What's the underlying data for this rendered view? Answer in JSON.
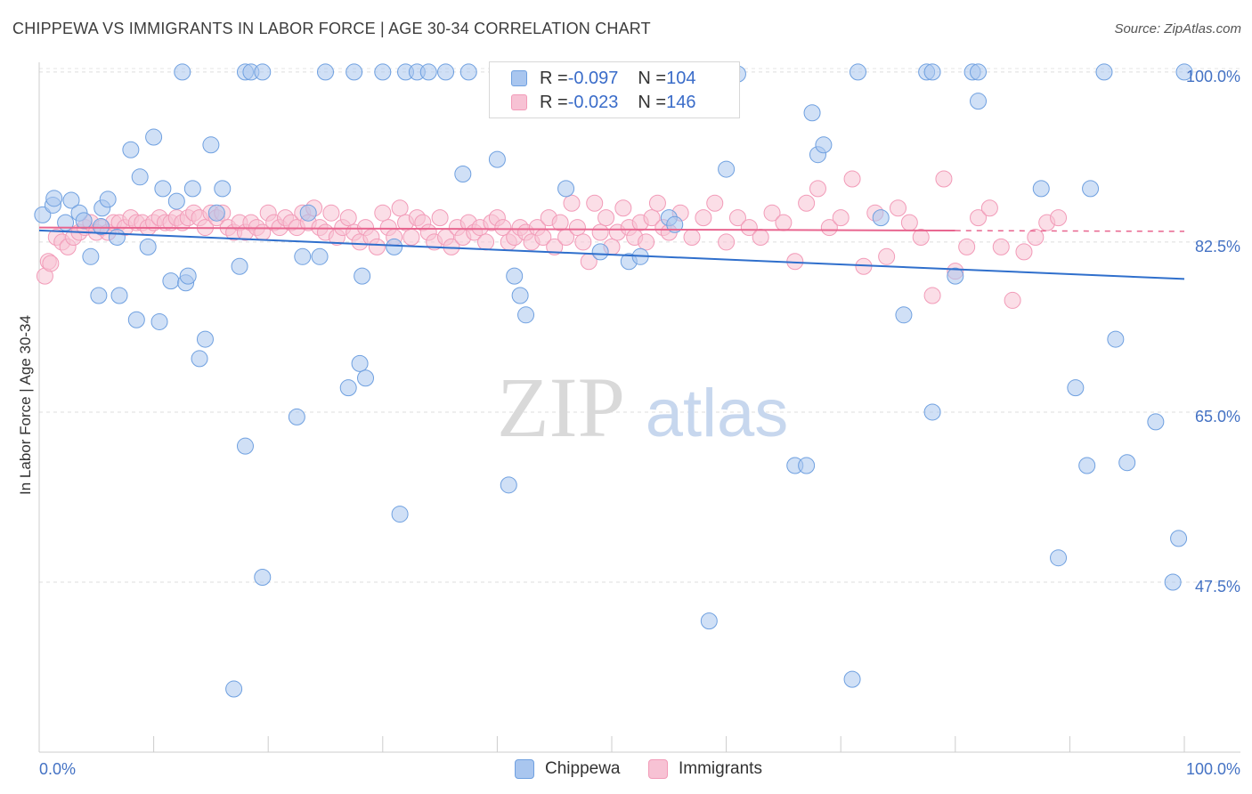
{
  "title": "CHIPPEWA VS IMMIGRANTS IN LABOR FORCE | AGE 30-34 CORRELATION CHART",
  "source": "Source: ZipAtlas.com",
  "watermark": {
    "zip": "ZIP",
    "atlas": "atlas"
  },
  "legend": {
    "rows": [
      {
        "r_label": "R = ",
        "r_value": "-0.097",
        "n_label": "N = ",
        "n_value": "104",
        "color": "#6fa0e0"
      },
      {
        "r_label": "R = ",
        "r_value": "-0.023",
        "n_label": "N = ",
        "n_value": "146",
        "color": "#f29bb8"
      }
    ]
  },
  "bottom_legend": {
    "chippewa": "Chippewa",
    "immigrants": "Immigrants"
  },
  "chart_data": {
    "type": "scatter",
    "ylabel": "In Labor Force | Age 30-34",
    "xlabel": "",
    "xlim": [
      0,
      100
    ],
    "ylim": [
      30,
      101
    ],
    "x_tick_labels": [
      "0.0%",
      "100.0%"
    ],
    "y_ticks": [
      {
        "value": 100,
        "label": "100.0%"
      },
      {
        "value": 82.5,
        "label": "82.5%"
      },
      {
        "value": 65,
        "label": "65.0%"
      },
      {
        "value": 47.5,
        "label": "47.5%"
      }
    ],
    "grid": true,
    "series": [
      {
        "name": "Chippewa",
        "color": "#6fa0e0",
        "fill": "#a9c6ef",
        "trend": {
          "x0": 0,
          "y0": 83.7,
          "x1": 100,
          "y1": 78.7,
          "dashed_from": null
        },
        "points": [
          [
            0.3,
            85.3
          ],
          [
            1.2,
            86.3
          ],
          [
            1.3,
            87.0
          ],
          [
            2.3,
            84.5
          ],
          [
            2.8,
            86.8
          ],
          [
            3.5,
            85.5
          ],
          [
            3.9,
            84.7
          ],
          [
            4.5,
            81.0
          ],
          [
            5.2,
            77.0
          ],
          [
            5.4,
            84.1
          ],
          [
            5.5,
            86.0
          ],
          [
            6.0,
            86.9
          ],
          [
            6.8,
            83.0
          ],
          [
            7.0,
            77.0
          ],
          [
            8.0,
            92.0
          ],
          [
            8.5,
            74.5
          ],
          [
            8.8,
            89.2
          ],
          [
            9.5,
            82.0
          ],
          [
            10.0,
            93.3
          ],
          [
            10.5,
            74.3
          ],
          [
            10.8,
            88.0
          ],
          [
            11.5,
            78.5
          ],
          [
            12.0,
            86.7
          ],
          [
            12.5,
            100
          ],
          [
            12.8,
            78.3
          ],
          [
            13.0,
            79.0
          ],
          [
            13.4,
            88.0
          ],
          [
            14.0,
            70.5
          ],
          [
            14.5,
            72.5
          ],
          [
            15.0,
            92.5
          ],
          [
            15.5,
            85.5
          ],
          [
            16.0,
            88.0
          ],
          [
            17.5,
            80.0
          ],
          [
            18.0,
            100
          ],
          [
            18.5,
            100
          ],
          [
            19.5,
            100
          ],
          [
            17.0,
            36.5
          ],
          [
            18.0,
            61.5
          ],
          [
            19.5,
            48.0
          ],
          [
            22.5,
            64.5
          ],
          [
            23.0,
            81.0
          ],
          [
            23.5,
            85.5
          ],
          [
            24.5,
            81.0
          ],
          [
            25.0,
            100
          ],
          [
            27.5,
            100
          ],
          [
            27.0,
            67.5
          ],
          [
            28.0,
            70.0
          ],
          [
            28.2,
            79.0
          ],
          [
            28.5,
            68.5
          ],
          [
            30.0,
            100
          ],
          [
            31.0,
            82.0
          ],
          [
            31.5,
            54.5
          ],
          [
            32.0,
            100
          ],
          [
            33.0,
            100
          ],
          [
            34.0,
            100
          ],
          [
            35.5,
            100
          ],
          [
            37.5,
            100
          ],
          [
            37.0,
            89.5
          ],
          [
            40.0,
            91.0
          ],
          [
            41.0,
            57.5
          ],
          [
            41.5,
            79.0
          ],
          [
            42.0,
            77.0
          ],
          [
            42.5,
            75.0
          ],
          [
            46.0,
            88.0
          ],
          [
            49.0,
            81.5
          ],
          [
            51.0,
            100
          ],
          [
            51.5,
            80.5
          ],
          [
            52.5,
            81.0
          ],
          [
            54.0,
            100
          ],
          [
            55.0,
            85.0
          ],
          [
            55.5,
            84.3
          ],
          [
            58.0,
            100
          ],
          [
            58.5,
            43.5
          ],
          [
            60.0,
            90.0
          ],
          [
            61.0,
            99.8
          ],
          [
            66.0,
            59.5
          ],
          [
            67.0,
            59.5
          ],
          [
            67.5,
            95.8
          ],
          [
            68.0,
            91.5
          ],
          [
            68.5,
            92.5
          ],
          [
            71.0,
            37.5
          ],
          [
            71.5,
            100
          ],
          [
            73.5,
            85.0
          ],
          [
            75.5,
            75.0
          ],
          [
            77.5,
            100
          ],
          [
            78.0,
            100
          ],
          [
            78.0,
            65.0
          ],
          [
            80.0,
            79.0
          ],
          [
            81.5,
            100
          ],
          [
            82.0,
            100
          ],
          [
            82.0,
            97.0
          ],
          [
            87.5,
            88.0
          ],
          [
            89.0,
            50.0
          ],
          [
            90.5,
            67.5
          ],
          [
            91.5,
            59.5
          ],
          [
            91.8,
            88.0
          ],
          [
            93.0,
            100
          ],
          [
            94.0,
            72.5
          ],
          [
            95.0,
            59.8
          ],
          [
            97.5,
            64.0
          ],
          [
            99.0,
            47.5
          ],
          [
            99.5,
            52.0
          ],
          [
            100,
            100
          ]
        ]
      },
      {
        "name": "Immigrants",
        "color": "#f29bb8",
        "fill": "#f7c2d4",
        "trend": {
          "x0": 0,
          "y0": 84.0,
          "x1": 100,
          "y1": 83.6,
          "dashed_from": 80
        },
        "points": [
          [
            0.5,
            79.0
          ],
          [
            0.8,
            80.5
          ],
          [
            1.0,
            80.3
          ],
          [
            1.5,
            83.0
          ],
          [
            2.0,
            82.5
          ],
          [
            2.5,
            82.0
          ],
          [
            3.0,
            83.0
          ],
          [
            3.5,
            83.5
          ],
          [
            4.0,
            84.0
          ],
          [
            4.5,
            84.5
          ],
          [
            5.0,
            83.5
          ],
          [
            5.5,
            84.0
          ],
          [
            6.0,
            83.5
          ],
          [
            6.5,
            84.5
          ],
          [
            7.0,
            84.5
          ],
          [
            7.5,
            84.0
          ],
          [
            8.0,
            85.0
          ],
          [
            8.5,
            84.5
          ],
          [
            9.0,
            84.5
          ],
          [
            9.5,
            84.0
          ],
          [
            10.0,
            84.5
          ],
          [
            10.5,
            85.0
          ],
          [
            11.0,
            84.5
          ],
          [
            11.5,
            84.5
          ],
          [
            12.0,
            85.0
          ],
          [
            12.5,
            84.5
          ],
          [
            13.0,
            85.0
          ],
          [
            13.5,
            85.5
          ],
          [
            14.0,
            85.0
          ],
          [
            14.5,
            84.0
          ],
          [
            15.0,
            85.5
          ],
          [
            15.5,
            85.0
          ],
          [
            16.0,
            85.5
          ],
          [
            16.5,
            84.0
          ],
          [
            17.0,
            83.5
          ],
          [
            17.5,
            84.5
          ],
          [
            18.0,
            83.5
          ],
          [
            18.5,
            84.5
          ],
          [
            19.0,
            84.0
          ],
          [
            19.5,
            83.5
          ],
          [
            20.0,
            85.5
          ],
          [
            20.5,
            84.5
          ],
          [
            21.0,
            84.0
          ],
          [
            21.5,
            85.0
          ],
          [
            22.0,
            84.5
          ],
          [
            22.5,
            84.0
          ],
          [
            23.0,
            85.5
          ],
          [
            23.5,
            84.5
          ],
          [
            24.0,
            86.0
          ],
          [
            24.5,
            84.0
          ],
          [
            25.0,
            83.5
          ],
          [
            25.5,
            85.5
          ],
          [
            26.0,
            83.0
          ],
          [
            26.5,
            84.0
          ],
          [
            27.0,
            85.0
          ],
          [
            27.5,
            83.5
          ],
          [
            28.0,
            82.5
          ],
          [
            28.5,
            84.0
          ],
          [
            29.0,
            83.0
          ],
          [
            29.5,
            82.0
          ],
          [
            30.0,
            85.5
          ],
          [
            30.5,
            84.0
          ],
          [
            31.0,
            83.0
          ],
          [
            31.5,
            86.0
          ],
          [
            32.0,
            84.5
          ],
          [
            32.5,
            83.0
          ],
          [
            33.0,
            85.0
          ],
          [
            33.5,
            84.5
          ],
          [
            34.0,
            83.5
          ],
          [
            34.5,
            82.5
          ],
          [
            35.0,
            85.0
          ],
          [
            35.5,
            83.0
          ],
          [
            36.0,
            82.0
          ],
          [
            36.5,
            84.0
          ],
          [
            37.0,
            83.0
          ],
          [
            37.5,
            84.5
          ],
          [
            38.0,
            83.5
          ],
          [
            38.5,
            84.0
          ],
          [
            39.0,
            82.5
          ],
          [
            39.5,
            84.5
          ],
          [
            40.0,
            85.0
          ],
          [
            40.5,
            84.0
          ],
          [
            41.0,
            82.5
          ],
          [
            41.5,
            83.0
          ],
          [
            42.0,
            84.0
          ],
          [
            42.5,
            83.5
          ],
          [
            43.0,
            82.5
          ],
          [
            43.5,
            84.0
          ],
          [
            44.0,
            83.0
          ],
          [
            44.5,
            85.0
          ],
          [
            45.0,
            82.0
          ],
          [
            45.5,
            84.5
          ],
          [
            46.0,
            83.0
          ],
          [
            46.5,
            86.5
          ],
          [
            47.0,
            84.0
          ],
          [
            47.5,
            82.5
          ],
          [
            48.0,
            80.5
          ],
          [
            48.5,
            86.5
          ],
          [
            49.0,
            83.5
          ],
          [
            49.5,
            85.0
          ],
          [
            50.0,
            82.0
          ],
          [
            50.5,
            83.5
          ],
          [
            51.0,
            86.0
          ],
          [
            51.5,
            84.0
          ],
          [
            52.0,
            83.0
          ],
          [
            52.5,
            84.5
          ],
          [
            53.0,
            82.5
          ],
          [
            53.5,
            85.0
          ],
          [
            54.0,
            86.5
          ],
          [
            54.5,
            84.0
          ],
          [
            55.0,
            83.5
          ],
          [
            56.0,
            85.5
          ],
          [
            57.0,
            83.0
          ],
          [
            58.0,
            85.0
          ],
          [
            59.0,
            86.5
          ],
          [
            60.0,
            82.5
          ],
          [
            61.0,
            85.0
          ],
          [
            62.0,
            84.0
          ],
          [
            63.0,
            83.0
          ],
          [
            64.0,
            85.5
          ],
          [
            65.0,
            84.5
          ],
          [
            66.0,
            80.5
          ],
          [
            67.0,
            86.5
          ],
          [
            68.0,
            88.0
          ],
          [
            69.0,
            84.0
          ],
          [
            70.0,
            85.0
          ],
          [
            71.0,
            89.0
          ],
          [
            72.0,
            80.0
          ],
          [
            73.0,
            85.5
          ],
          [
            74.0,
            81.0
          ],
          [
            75.0,
            86.0
          ],
          [
            76.0,
            84.5
          ],
          [
            77.0,
            83.0
          ],
          [
            78.0,
            77.0
          ],
          [
            79.0,
            89.0
          ],
          [
            80.0,
            79.5
          ],
          [
            81.0,
            82.0
          ],
          [
            82.0,
            85.0
          ],
          [
            83.0,
            86.0
          ],
          [
            84.0,
            82.0
          ],
          [
            85.0,
            76.5
          ],
          [
            86.0,
            81.5
          ],
          [
            87.0,
            83.0
          ],
          [
            88.0,
            84.5
          ],
          [
            89.0,
            85.0
          ]
        ]
      }
    ]
  }
}
